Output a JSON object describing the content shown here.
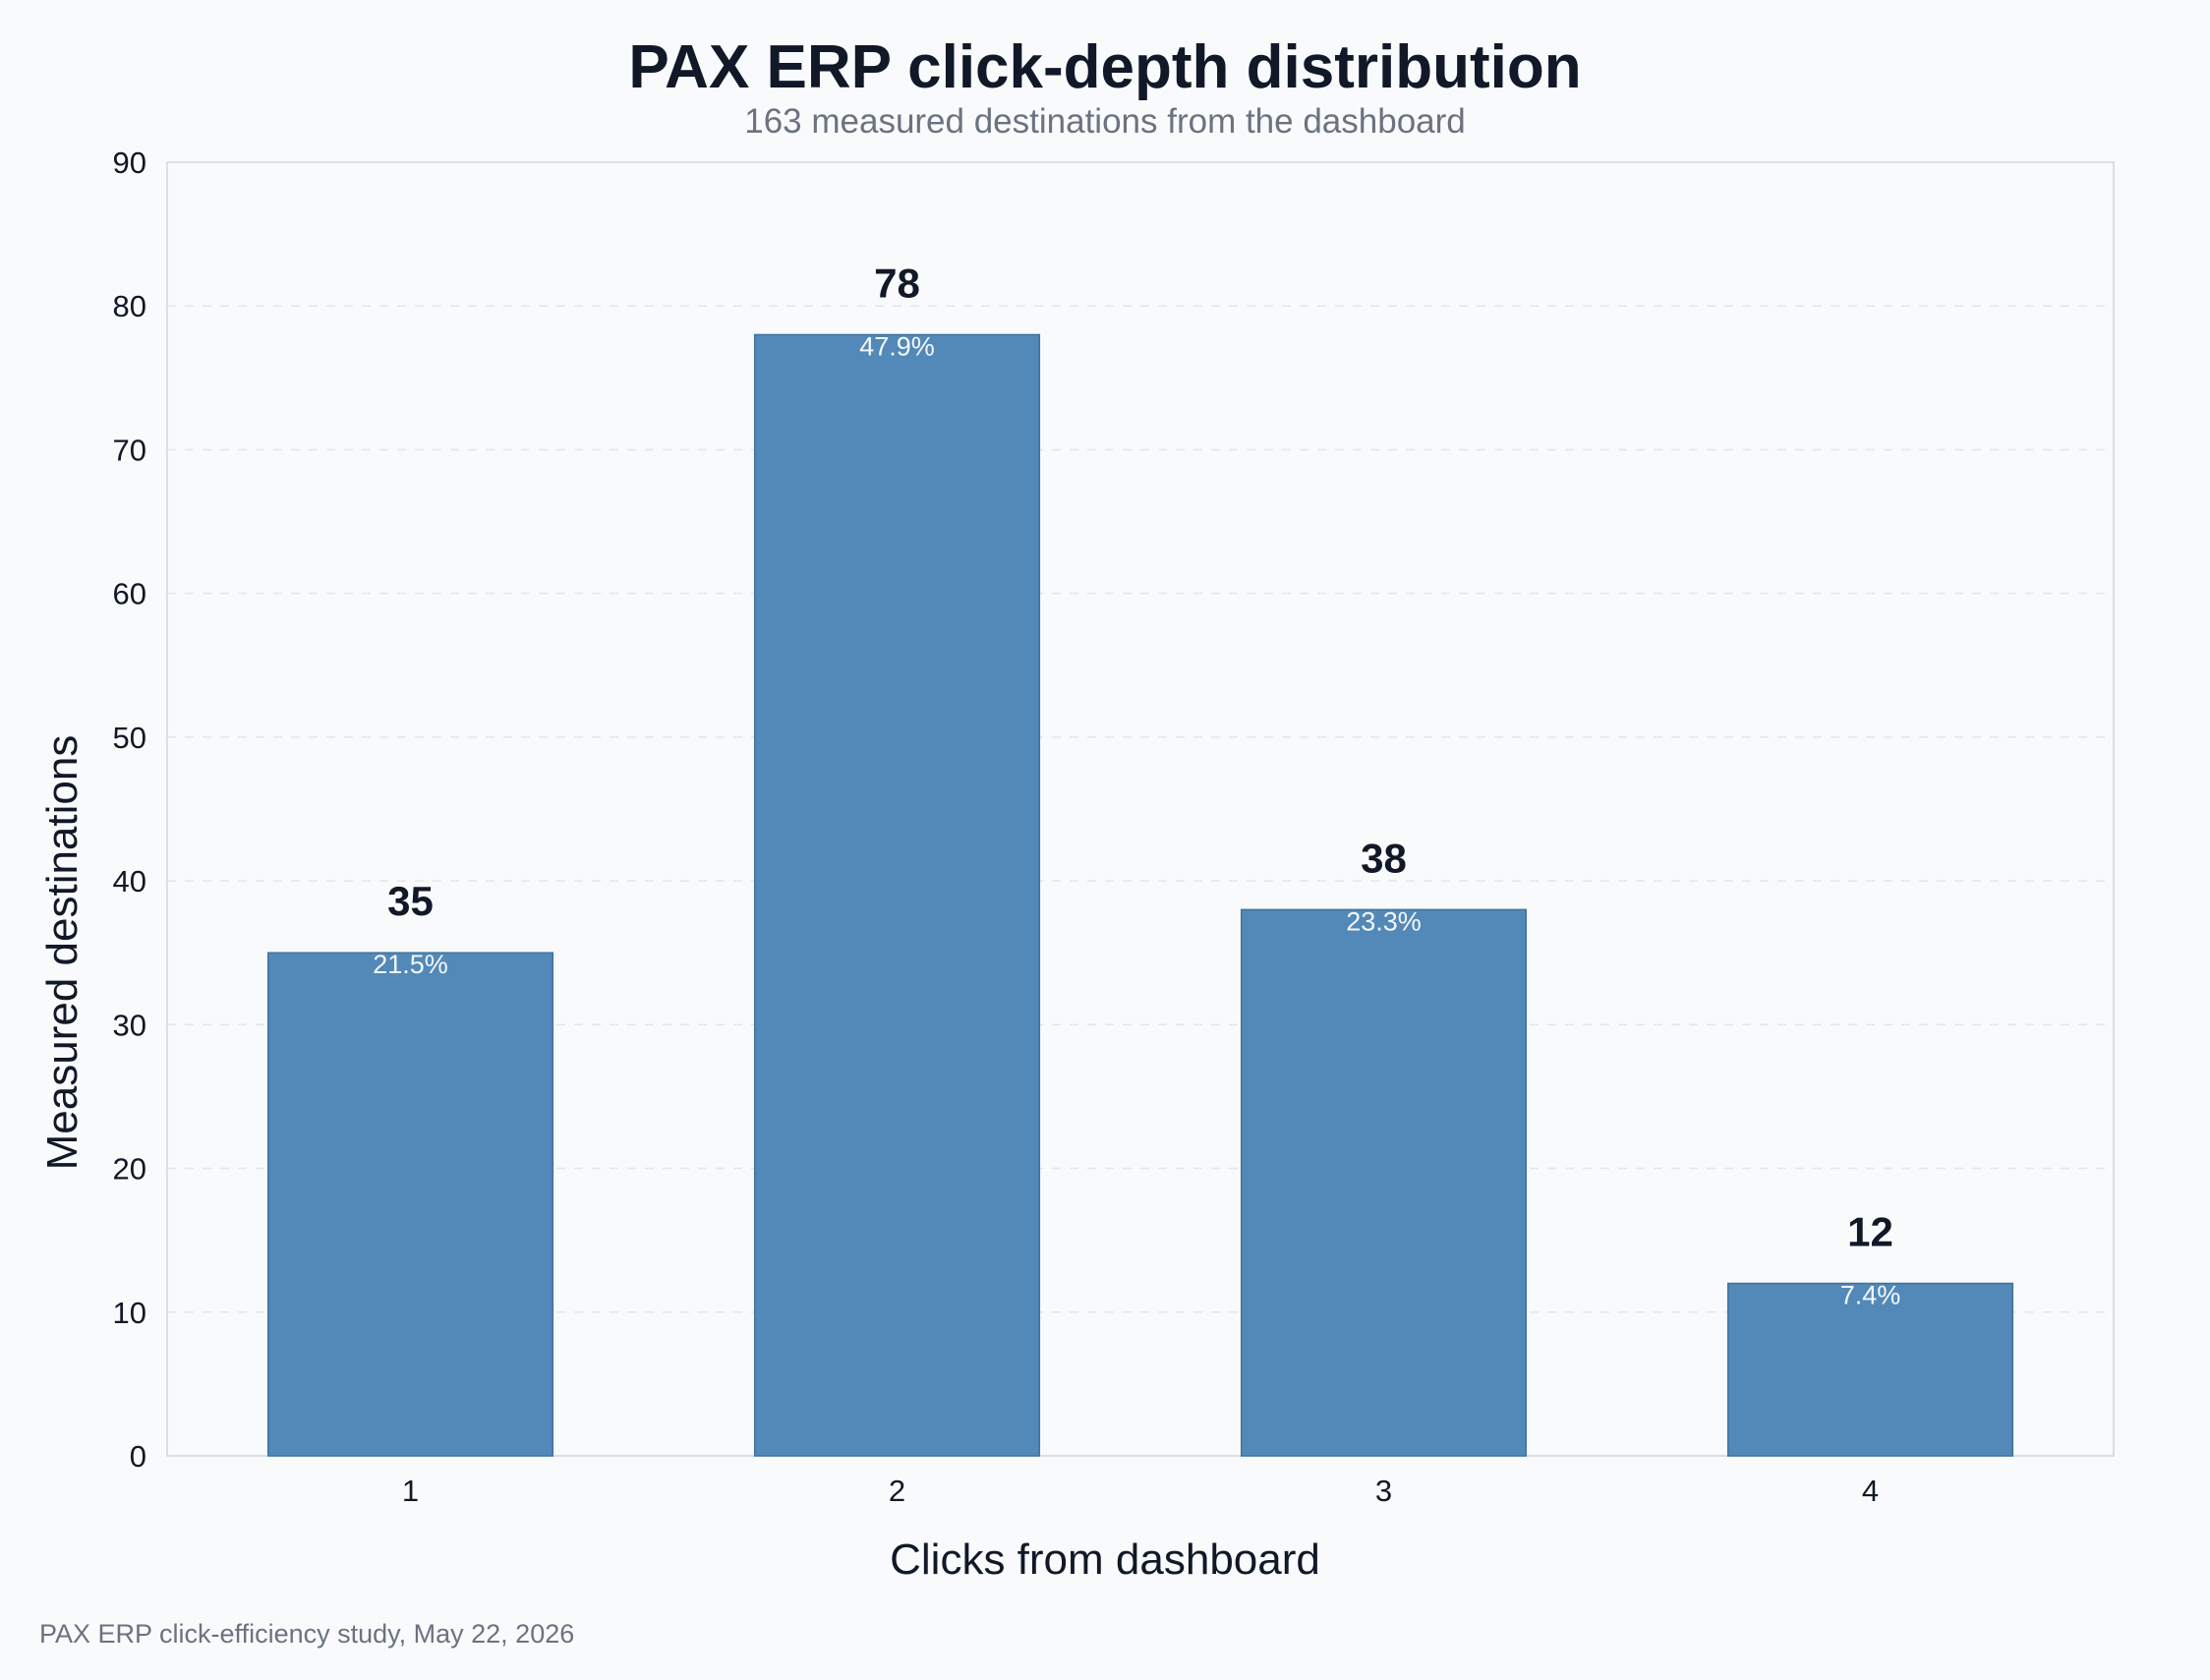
{
  "chart_data": {
    "type": "bar",
    "title": "PAX ERP click-depth distribution",
    "subtitle": "163 measured destinations from the dashboard",
    "xlabel": "Clicks from dashboard",
    "ylabel": "Measured destinations",
    "categories": [
      "1",
      "2",
      "3",
      "4"
    ],
    "values": [
      35,
      78,
      38,
      12
    ],
    "value_labels": [
      "35",
      "78",
      "38",
      "12"
    ],
    "percent_labels": [
      "21.5%",
      "47.9%",
      "23.3%",
      "7.4%"
    ],
    "ylim": [
      0,
      90
    ],
    "yticks": [
      0,
      10,
      20,
      30,
      40,
      50,
      60,
      70,
      80,
      90
    ],
    "grid": true,
    "bar_color": "#5289b8",
    "bar_edge_color": "#3f739f",
    "footer": "PAX ERP click-efficiency study, May 22, 2026"
  }
}
